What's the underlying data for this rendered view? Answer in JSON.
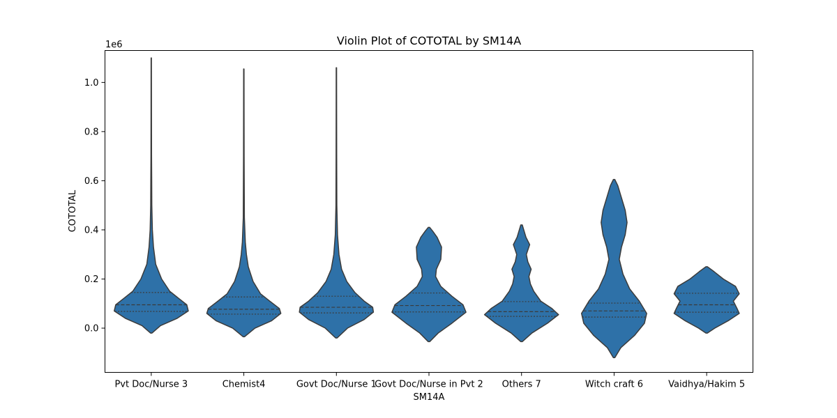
{
  "chart_data": {
    "type": "violin",
    "title": "Violin Plot of COTOTAL by SM14A",
    "xlabel": "SM14A",
    "ylabel": "COTOTAL",
    "y_offset_label": "1e6",
    "ylim": [
      -180000,
      1130000
    ],
    "yticks": [
      0.0,
      0.2,
      0.4,
      0.6,
      0.8,
      1.0
    ],
    "ytick_labels": [
      "0.0",
      "0.2",
      "0.4",
      "0.6",
      "0.8",
      "1.0"
    ],
    "y_scale": 1000000,
    "color": "#2e71a8",
    "line_color": "#3b3b3b",
    "grid": false,
    "categories": [
      "Pvt Doc/Nurse 3",
      "Chemist4",
      "Govt Doc/Nurse 1",
      "Govt Doc/Nurse in Pvt 2",
      "Others 7",
      "Witch craft 6",
      "Vaidhya/Hakim 5"
    ],
    "violins": [
      {
        "category": "Pvt Doc/Nurse 3",
        "min": -20000,
        "max": 1100000,
        "q1": 68000,
        "median": 95000,
        "q3": 145000,
        "profile": [
          [
            -20000,
            0.02
          ],
          [
            10000,
            0.25
          ],
          [
            40000,
            0.7
          ],
          [
            70000,
            1.0
          ],
          [
            95000,
            0.96
          ],
          [
            120000,
            0.75
          ],
          [
            150000,
            0.5
          ],
          [
            200000,
            0.28
          ],
          [
            260000,
            0.12
          ],
          [
            330000,
            0.06
          ],
          [
            400000,
            0.03
          ],
          [
            500000,
            0.015
          ],
          [
            600000,
            0.012
          ],
          [
            700000,
            0.008
          ],
          [
            850000,
            0.006
          ],
          [
            1000000,
            0.005
          ],
          [
            1100000,
            0.004
          ]
        ]
      },
      {
        "category": "Chemist4",
        "min": -35000,
        "max": 1055000,
        "q1": 57000,
        "median": 77000,
        "q3": 127000,
        "profile": [
          [
            -35000,
            0.02
          ],
          [
            0,
            0.3
          ],
          [
            30000,
            0.75
          ],
          [
            60000,
            1.0
          ],
          [
            80000,
            0.96
          ],
          [
            110000,
            0.7
          ],
          [
            140000,
            0.45
          ],
          [
            190000,
            0.25
          ],
          [
            250000,
            0.12
          ],
          [
            300000,
            0.07
          ],
          [
            350000,
            0.04
          ],
          [
            450000,
            0.015
          ],
          [
            550000,
            0.012
          ],
          [
            700000,
            0.008
          ],
          [
            900000,
            0.006
          ],
          [
            1055000,
            0.005
          ]
        ]
      },
      {
        "category": "Govt Doc/Nurse 1",
        "min": -40000,
        "max": 1060000,
        "q1": 62000,
        "median": 85000,
        "q3": 130000,
        "profile": [
          [
            -40000,
            0.02
          ],
          [
            0,
            0.3
          ],
          [
            35000,
            0.75
          ],
          [
            65000,
            1.0
          ],
          [
            85000,
            0.98
          ],
          [
            110000,
            0.75
          ],
          [
            145000,
            0.5
          ],
          [
            190000,
            0.28
          ],
          [
            240000,
            0.14
          ],
          [
            300000,
            0.07
          ],
          [
            380000,
            0.03
          ],
          [
            500000,
            0.012
          ],
          [
            700000,
            0.008
          ],
          [
            900000,
            0.006
          ],
          [
            1060000,
            0.005
          ]
        ]
      },
      {
        "category": "Govt Doc/Nurse in Pvt 2",
        "min": -55000,
        "max": 410000,
        "q1": 66000,
        "median": 92000,
        "q3": 143000,
        "profile": [
          [
            -55000,
            0.02
          ],
          [
            -20000,
            0.25
          ],
          [
            20000,
            0.62
          ],
          [
            65000,
            1.0
          ],
          [
            95000,
            0.92
          ],
          [
            130000,
            0.62
          ],
          [
            170000,
            0.32
          ],
          [
            210000,
            0.18
          ],
          [
            240000,
            0.2
          ],
          [
            280000,
            0.32
          ],
          [
            330000,
            0.34
          ],
          [
            370000,
            0.22
          ],
          [
            395000,
            0.1
          ],
          [
            410000,
            0.02
          ]
        ]
      },
      {
        "category": "Others 7",
        "min": -55000,
        "max": 420000,
        "q1": 48000,
        "median": 67000,
        "q3": 108000,
        "profile": [
          [
            -55000,
            0.02
          ],
          [
            -20000,
            0.28
          ],
          [
            20000,
            0.7
          ],
          [
            55000,
            1.0
          ],
          [
            80000,
            0.82
          ],
          [
            110000,
            0.52
          ],
          [
            150000,
            0.33
          ],
          [
            180000,
            0.24
          ],
          [
            210000,
            0.2
          ],
          [
            240000,
            0.26
          ],
          [
            270000,
            0.17
          ],
          [
            300000,
            0.13
          ],
          [
            340000,
            0.22
          ],
          [
            370000,
            0.12
          ],
          [
            400000,
            0.06
          ],
          [
            420000,
            0.02
          ]
        ]
      },
      {
        "category": "Witch craft 6",
        "min": -120000,
        "max": 605000,
        "q1": 45000,
        "median": 70000,
        "q3": 102000,
        "profile": [
          [
            -120000,
            0.02
          ],
          [
            -80000,
            0.18
          ],
          [
            -30000,
            0.55
          ],
          [
            20000,
            0.82
          ],
          [
            60000,
            0.88
          ],
          [
            110000,
            0.68
          ],
          [
            160000,
            0.42
          ],
          [
            220000,
            0.24
          ],
          [
            280000,
            0.14
          ],
          [
            330000,
            0.2
          ],
          [
            380000,
            0.3
          ],
          [
            430000,
            0.35
          ],
          [
            480000,
            0.3
          ],
          [
            530000,
            0.2
          ],
          [
            580000,
            0.1
          ],
          [
            605000,
            0.02
          ]
        ]
      },
      {
        "category": "Vaidhya/Hakim 5",
        "min": -20000,
        "max": 250000,
        "q1": 65000,
        "median": 95000,
        "q3": 142000,
        "profile": [
          [
            -20000,
            0.02
          ],
          [
            0,
            0.22
          ],
          [
            30000,
            0.58
          ],
          [
            60000,
            0.88
          ],
          [
            80000,
            0.82
          ],
          [
            110000,
            0.72
          ],
          [
            140000,
            0.88
          ],
          [
            170000,
            0.78
          ],
          [
            200000,
            0.45
          ],
          [
            230000,
            0.2
          ],
          [
            250000,
            0.02
          ]
        ]
      }
    ]
  }
}
